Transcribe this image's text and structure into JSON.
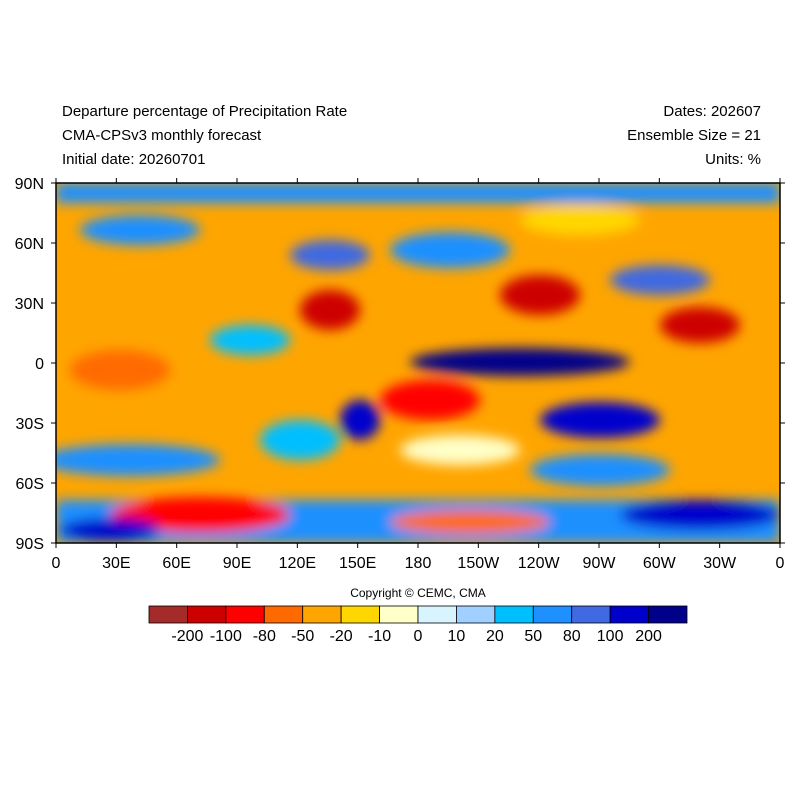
{
  "header": {
    "title": "Departure percentage of Precipitation Rate",
    "subtitle": "CMA-CPSv3 monthly forecast",
    "initial_date": "Initial date: 20260701",
    "dates": "Dates: 202607",
    "ensemble": "Ensemble Size = 21",
    "units": "Units: %"
  },
  "map": {
    "lat_labels": [
      "90N",
      "60N",
      "30N",
      "0",
      "30S",
      "60S",
      "90S"
    ],
    "lon_labels": [
      "0",
      "30E",
      "60E",
      "90E",
      "120E",
      "150E",
      "180",
      "150W",
      "120W",
      "90W",
      "60W",
      "30W",
      "0"
    ]
  },
  "copyright": "Copyright © CEMC, CMA",
  "colorbar": {
    "colors": [
      "#a52a2a",
      "#cd0000",
      "#ff0000",
      "#ff6a00",
      "#ffa500",
      "#ffd700",
      "#ffffc8",
      "#d8f4ff",
      "#a0d0ff",
      "#00bfff",
      "#1e90ff",
      "#4169e1",
      "#0000cd",
      "#00008b"
    ],
    "labels": [
      "-200",
      "-100",
      "-80",
      "-50",
      "-20",
      "-10",
      "0",
      "10",
      "20",
      "50",
      "80",
      "100",
      "200"
    ]
  }
}
